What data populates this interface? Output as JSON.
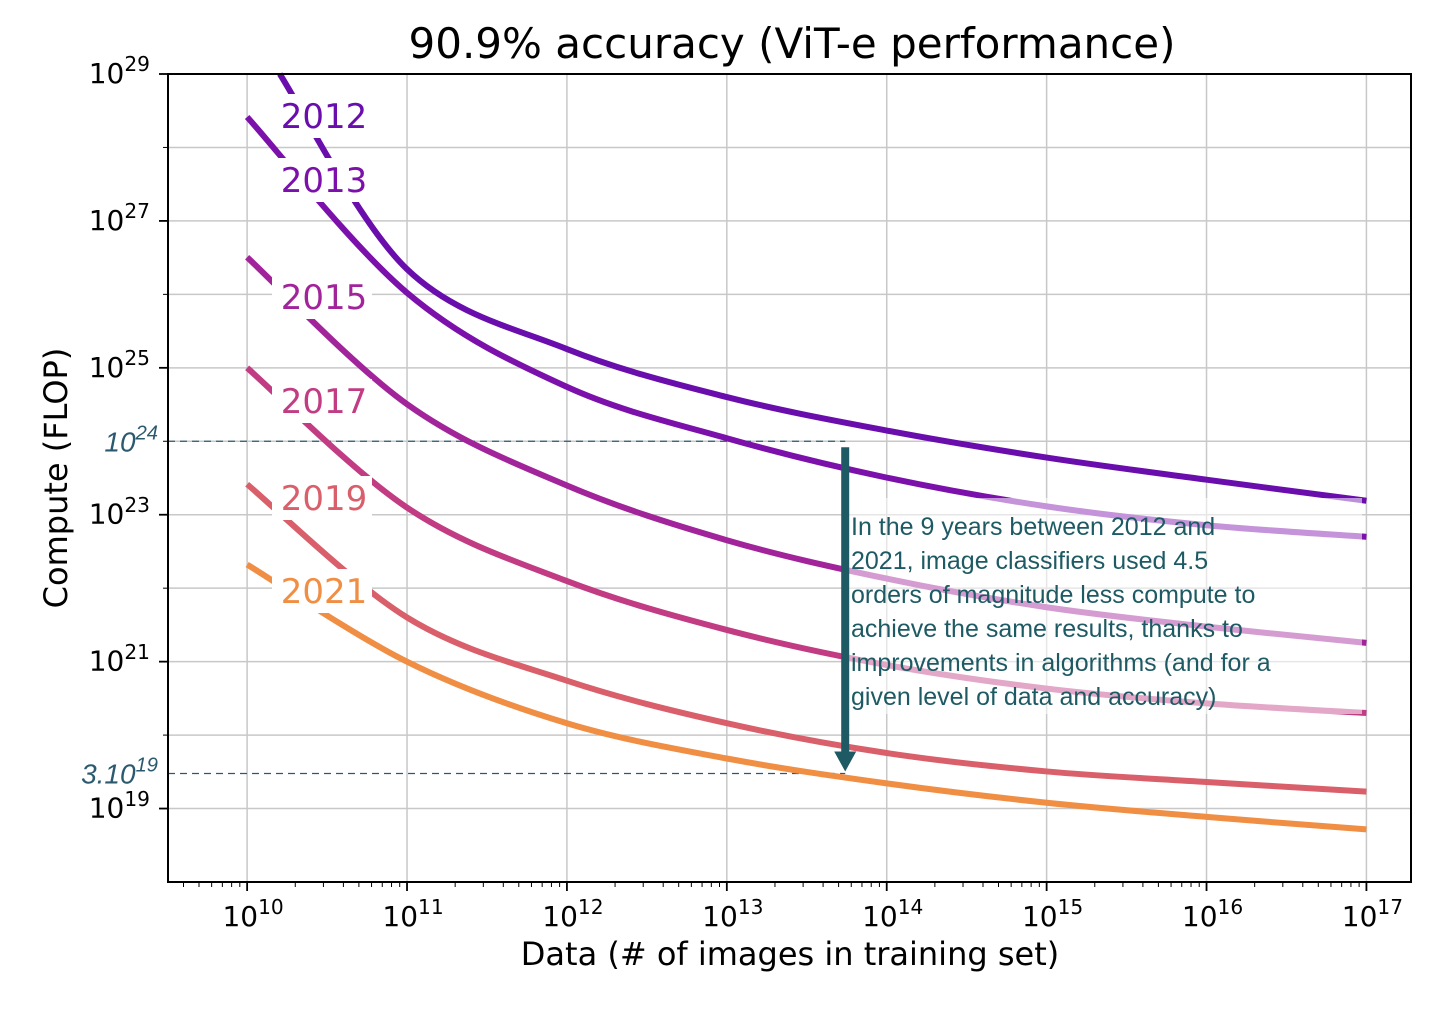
{
  "chart_data": {
    "type": "line",
    "title": "90.9% accuracy (ViT-e performance)",
    "xlabel": "Data (# of images in training set)",
    "ylabel": "Compute (FLOP)",
    "x_scale": "log",
    "y_scale": "log",
    "xlim": [
      3200000000.0,
      1.9e+17
    ],
    "ylim": [
      1e+18,
      1e+29
    ],
    "x_ticks": [
      {
        "value": 10000000000.0,
        "base": "10",
        "exp": "10"
      },
      {
        "value": 100000000000.0,
        "base": "10",
        "exp": "11"
      },
      {
        "value": 1000000000000.0,
        "base": "10",
        "exp": "12"
      },
      {
        "value": 10000000000000.0,
        "base": "10",
        "exp": "13"
      },
      {
        "value": 100000000000000.0,
        "base": "10",
        "exp": "14"
      },
      {
        "value": 1000000000000000.0,
        "base": "10",
        "exp": "15"
      },
      {
        "value": 1e+16,
        "base": "10",
        "exp": "16"
      },
      {
        "value": 1e+17,
        "base": "10",
        "exp": "17"
      }
    ],
    "y_ticks": [
      {
        "value": 1e+19,
        "base": "10",
        "exp": "19"
      },
      {
        "value": 1e+21,
        "base": "10",
        "exp": "21"
      },
      {
        "value": 1e+23,
        "base": "10",
        "exp": "23"
      },
      {
        "value": 1e+25,
        "base": "10",
        "exp": "25"
      },
      {
        "value": 1e+27,
        "base": "10",
        "exp": "27"
      },
      {
        "value": 1e+29,
        "base": "10",
        "exp": "29"
      }
    ],
    "grid": true,
    "series": [
      {
        "name": "2012",
        "color": "#6a0dad",
        "points": [
          [
            16000000000.0,
            1e+29
          ],
          [
            100000000000.0,
            2.2e+26
          ],
          [
            1000000000000.0,
            1.8e+25
          ],
          [
            10000000000000.0,
            4e+24
          ],
          [
            100000000000000.0,
            1.4e+24
          ],
          [
            1000000000000000.0,
            6e+23
          ],
          [
            1e+16,
            3e+23
          ],
          [
            1e+17,
            1.55e+23
          ]
        ]
      },
      {
        "name": "2013",
        "color": "#7c10ab",
        "points": [
          [
            10000000000.0,
            2.6e+28
          ],
          [
            100000000000.0,
            1.05e+26
          ],
          [
            1000000000000.0,
            5.5e+24
          ],
          [
            10000000000000.0,
            1.1e+24
          ],
          [
            100000000000000.0,
            3.2e+23
          ],
          [
            1000000000000000.0,
            1.3e+23
          ],
          [
            1e+16,
            7.2e+22
          ],
          [
            1e+17,
            5e+22
          ]
        ]
      },
      {
        "name": "2015",
        "color": "#a2249b",
        "points": [
          [
            10000000000.0,
            3.2e+26
          ],
          [
            100000000000.0,
            3.2e+24
          ],
          [
            1000000000000.0,
            2.5e+23
          ],
          [
            10000000000000.0,
            4.5e+22
          ],
          [
            100000000000000.0,
            1.35e+22
          ],
          [
            1000000000000000.0,
            5.5e+21
          ],
          [
            1e+16,
            3e+21
          ],
          [
            1e+17,
            1.8e+21
          ]
        ]
      },
      {
        "name": "2017",
        "color": "#c13c83",
        "points": [
          [
            10000000000.0,
            1e+25
          ],
          [
            100000000000.0,
            1.25e+23
          ],
          [
            1000000000000.0,
            1.25e+22
          ],
          [
            10000000000000.0,
            2.7e+21
          ],
          [
            100000000000000.0,
            9e+20
          ],
          [
            1000000000000000.0,
            4.3e+20
          ],
          [
            1e+16,
            2.7e+20
          ],
          [
            1e+17,
            2e+20
          ]
        ]
      },
      {
        "name": "2019",
        "color": "#d95f6a",
        "points": [
          [
            10000000000.0,
            2.6e+23
          ],
          [
            100000000000.0,
            4e+21
          ],
          [
            1000000000000.0,
            5.5e+20
          ],
          [
            10000000000000.0,
            1.45e+20
          ],
          [
            100000000000000.0,
            5.7e+19
          ],
          [
            1000000000000000.0,
            3.2e+19
          ],
          [
            1e+16,
            2.3e+19
          ],
          [
            1e+17,
            1.7e+19
          ]
        ]
      },
      {
        "name": "2021",
        "color": "#f08e44",
        "points": [
          [
            10000000000.0,
            2.1e+22
          ],
          [
            100000000000.0,
            1e+21
          ],
          [
            1000000000000.0,
            1.45e+20
          ],
          [
            10000000000000.0,
            4.8e+19
          ],
          [
            100000000000000.0,
            2.2e+19
          ],
          [
            1000000000000000.0,
            1.2e+19
          ],
          [
            1e+16,
            7.7e+18
          ],
          [
            1e+17,
            5.2e+18
          ]
        ]
      }
    ],
    "reference_lines": [
      {
        "y": 1e+24,
        "label": "10",
        "label_exp": "24"
      },
      {
        "y": 3e+19,
        "label": "3.10",
        "label_exp": "19"
      }
    ],
    "arrow": {
      "x": 55000000000000.0,
      "y_from": 1e+24,
      "y_to": 3e+19,
      "color": "#1d5a63"
    },
    "annotation": {
      "lines": [
        "In the 9 years between 2012 and",
        "2021, image classifiers used 4.5",
        "orders of magnitude less compute to",
        "achieve the same results, thanks to",
        "improvements in algorithms (and for a",
        "given level of data and accuracy)"
      ],
      "color": "#1d5a63"
    },
    "ref_color": "#2b5a70"
  }
}
